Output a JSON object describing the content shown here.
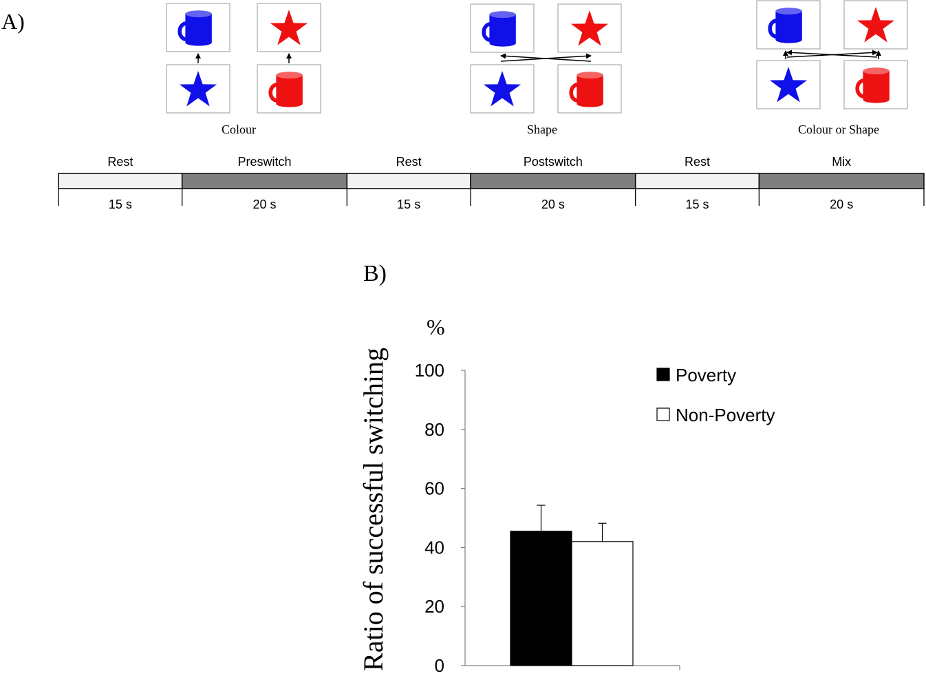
{
  "panel_a": {
    "label": "A)",
    "conditions": [
      {
        "name": "Colour",
        "rule": "colour",
        "cards": {
          "top_left": "blue-mug",
          "top_right": "red-star",
          "bottom_left": "blue-star",
          "bottom_right": "red-mug"
        }
      },
      {
        "name": "Shape",
        "rule": "shape",
        "cards": {
          "top_left": "blue-mug",
          "top_right": "red-star",
          "bottom_left": "blue-star",
          "bottom_right": "red-mug"
        }
      },
      {
        "name": "Colour or Shape",
        "rule": "both",
        "cards": {
          "top_left": "blue-mug",
          "top_right": "red-star",
          "bottom_left": "blue-star",
          "bottom_right": "red-mug"
        }
      }
    ],
    "timeline": [
      {
        "label": "Rest",
        "duration": "15 s",
        "seconds": 15,
        "kind": "rest"
      },
      {
        "label": "Preswitch",
        "duration": "20 s",
        "seconds": 20,
        "kind": "task"
      },
      {
        "label": "Rest",
        "duration": "15 s",
        "seconds": 15,
        "kind": "rest"
      },
      {
        "label": "Postswitch",
        "duration": "20 s",
        "seconds": 20,
        "kind": "task"
      },
      {
        "label": "Rest",
        "duration": "15 s",
        "seconds": 15,
        "kind": "rest"
      },
      {
        "label": "Mix",
        "duration": "20 s",
        "seconds": 20,
        "kind": "task"
      }
    ]
  },
  "colors": {
    "blue": "#1010e8",
    "red": "#ee1111",
    "rest_fill": "#f2f2f2",
    "task_fill": "#7f7f7f",
    "poverty_fill": "#000000",
    "non_poverty_fill": "#ffffff"
  },
  "chart_data": {
    "type": "bar",
    "label": "B)",
    "ylabel": "Ratio of successful switching",
    "yunit": "%",
    "ylim": [
      0,
      100
    ],
    "yticks": [
      0,
      20,
      40,
      60,
      80,
      100
    ],
    "categories": [
      ""
    ],
    "series": [
      {
        "name": "Poverty",
        "values": [
          45.5
        ],
        "error": [
          8.8
        ]
      },
      {
        "name": "Non-Poverty",
        "values": [
          42
        ],
        "error": [
          6.2
        ]
      }
    ],
    "legend": "top-right"
  }
}
